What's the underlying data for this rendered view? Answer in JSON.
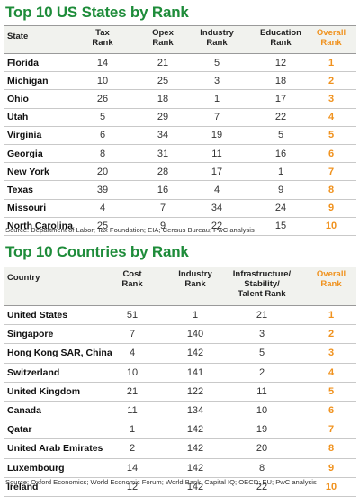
{
  "states": {
    "title": "Top 10 US States by Rank",
    "headers": [
      "State",
      "Tax\nRank",
      "Opex\nRank",
      "Industry\nRank",
      "Education\nRank",
      "Overall\nRank"
    ],
    "rows": [
      [
        "Florida",
        "14",
        "21",
        "5",
        "12",
        "1"
      ],
      [
        "Michigan",
        "10",
        "25",
        "3",
        "18",
        "2"
      ],
      [
        "Ohio",
        "26",
        "18",
        "1",
        "17",
        "3"
      ],
      [
        "Utah",
        "5",
        "29",
        "7",
        "22",
        "4"
      ],
      [
        "Virginia",
        "6",
        "34",
        "19",
        "5",
        "5"
      ],
      [
        "Georgia",
        "8",
        "31",
        "11",
        "16",
        "6"
      ],
      [
        "New York",
        "20",
        "28",
        "17",
        "1",
        "7"
      ],
      [
        "Texas",
        "39",
        "16",
        "4",
        "9",
        "8"
      ],
      [
        "Missouri",
        "4",
        "7",
        "34",
        "24",
        "9"
      ],
      [
        "North Carolina",
        "25",
        "9",
        "22",
        "15",
        "10"
      ]
    ],
    "source": "Source: Department of Labor; Tax Foundation; EIA; Census Bureau; PwC analysis"
  },
  "countries": {
    "title": "Top 10 Countries by Rank",
    "headers": [
      "Country",
      "Cost\nRank",
      "Industry\nRank",
      "Infrastructure/\nStability/\nTalent Rank",
      "Overall\nRank"
    ],
    "rows": [
      [
        "United States",
        "51",
        "1",
        "21",
        "1"
      ],
      [
        "Singapore",
        "7",
        "140",
        "3",
        "2"
      ],
      [
        "Hong Kong SAR, China",
        "4",
        "142",
        "5",
        "3"
      ],
      [
        "Switzerland",
        "10",
        "141",
        "2",
        "4"
      ],
      [
        "United Kingdom",
        "21",
        "122",
        "11",
        "5"
      ],
      [
        "Canada",
        "11",
        "134",
        "10",
        "6"
      ],
      [
        "Qatar",
        "1",
        "142",
        "19",
        "7"
      ],
      [
        "United Arab Emirates",
        "2",
        "142",
        "20",
        "8"
      ],
      [
        "Luxembourg",
        "14",
        "142",
        "8",
        "9"
      ],
      [
        "Ireland",
        "12",
        "142",
        "22",
        "10"
      ]
    ],
    "source": "Source: Oxford Economics; World Economic Forum; World Bank, Capital IQ; OECD; EU; PwC analysis"
  },
  "colors": {
    "title": "#1e8c3a",
    "overall": "#f0921e",
    "header_bg": "#f1f2ee"
  }
}
